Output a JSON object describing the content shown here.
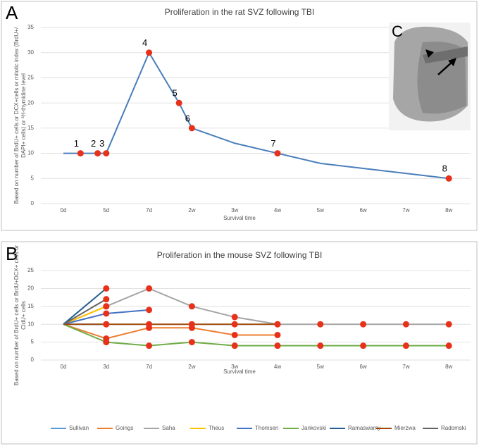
{
  "chart_data": [
    {
      "type": "line",
      "panel_label": "A",
      "title": "Proliferation in the rat SVZ following TBI",
      "xlabel": "Survival time",
      "ylabel": [
        "Based on number of BrdU+ cells or DCX+cells or mitotic index (BrdU+/",
        "DAPI+ cells) or ³H-thymidine level"
      ],
      "x": [
        0,
        0.4,
        0.8,
        1,
        2,
        2.7,
        3,
        4,
        5,
        6,
        7,
        8,
        9
      ],
      "values": [
        10,
        10,
        10,
        10,
        30,
        20,
        15,
        12,
        10,
        8,
        7,
        6,
        5
      ],
      "markers": [
        null,
        "1",
        "2",
        "3",
        "4",
        "5",
        "6",
        null,
        "7",
        null,
        null,
        null,
        "8"
      ],
      "color": "#4a7ebb",
      "marker_color": "#e8311a",
      "xlim": [
        -0.55,
        9.6
      ],
      "xticks": [
        {
          "value": 0,
          "label": "0d"
        },
        {
          "value": 1,
          "label": "5d"
        },
        {
          "value": 2,
          "label": "7d"
        },
        {
          "value": 3,
          "label": "2w"
        },
        {
          "value": 4,
          "label": "3w"
        },
        {
          "value": 5,
          "label": "4w"
        },
        {
          "value": 6,
          "label": "5w"
        },
        {
          "value": 7,
          "label": "6w"
        },
        {
          "value": 8,
          "label": "7w"
        },
        {
          "value": 9,
          "label": "8w"
        }
      ],
      "ylim": [
        0,
        35
      ],
      "yticks": [
        0,
        5,
        10,
        15,
        20,
        25,
        30,
        35
      ],
      "grid": true,
      "inset_label": "C"
    },
    {
      "type": "line",
      "panel_label": "B",
      "title": "Proliferation in the mouse SVZ following TBI",
      "xlabel": "Survival time",
      "ylabel": [
        "Based on number of BrdU+ cells or BrdU+DCX+ cells  or",
        "CldU+ cells"
      ],
      "categories": [
        "0d",
        "3d",
        "7d",
        "2w",
        "3w",
        "4w",
        "5w",
        "6w",
        "7w",
        "8w"
      ],
      "series": [
        {
          "name": "Sullivan",
          "color": "#5b9bd5",
          "values": [
            10,
            10,
            null,
            null,
            null,
            null,
            null,
            null,
            null,
            null
          ]
        },
        {
          "name": "Goings",
          "color": "#ed7d31",
          "values": [
            10,
            6,
            9,
            9,
            7,
            7,
            null,
            null,
            null,
            null
          ]
        },
        {
          "name": "Saha",
          "color": "#a5a5a5",
          "values": [
            10,
            15,
            20,
            15,
            12,
            10,
            10,
            10,
            10,
            10
          ]
        },
        {
          "name": "Theus",
          "color": "#ffc000",
          "values": [
            10,
            15,
            null,
            null,
            null,
            null,
            null,
            null,
            null,
            null
          ]
        },
        {
          "name": "Thomsen",
          "color": "#4472c4",
          "values": [
            10,
            13,
            14,
            null,
            null,
            null,
            null,
            null,
            null,
            null
          ]
        },
        {
          "name": "Jankovski",
          "color": "#70ad47",
          "values": [
            10,
            5,
            4,
            5,
            4,
            4,
            4,
            4,
            4,
            4
          ]
        },
        {
          "name": "Ramaswamy",
          "color": "#255e91",
          "values": [
            10,
            20,
            null,
            null,
            null,
            null,
            null,
            null,
            null,
            null
          ]
        },
        {
          "name": "Mierzwa",
          "color": "#9e480e",
          "values": [
            10,
            10,
            10,
            10,
            10,
            10,
            null,
            null,
            null,
            null
          ]
        },
        {
          "name": "Radomski",
          "color": "#636363",
          "values": [
            10,
            17,
            null,
            null,
            null,
            null,
            null,
            null,
            null,
            null
          ]
        }
      ],
      "marker_color": "#e8311a",
      "ylim": [
        0,
        25
      ],
      "yticks": [
        0,
        5,
        10,
        15,
        20,
        25
      ],
      "grid": true,
      "legend": "bottom"
    }
  ]
}
